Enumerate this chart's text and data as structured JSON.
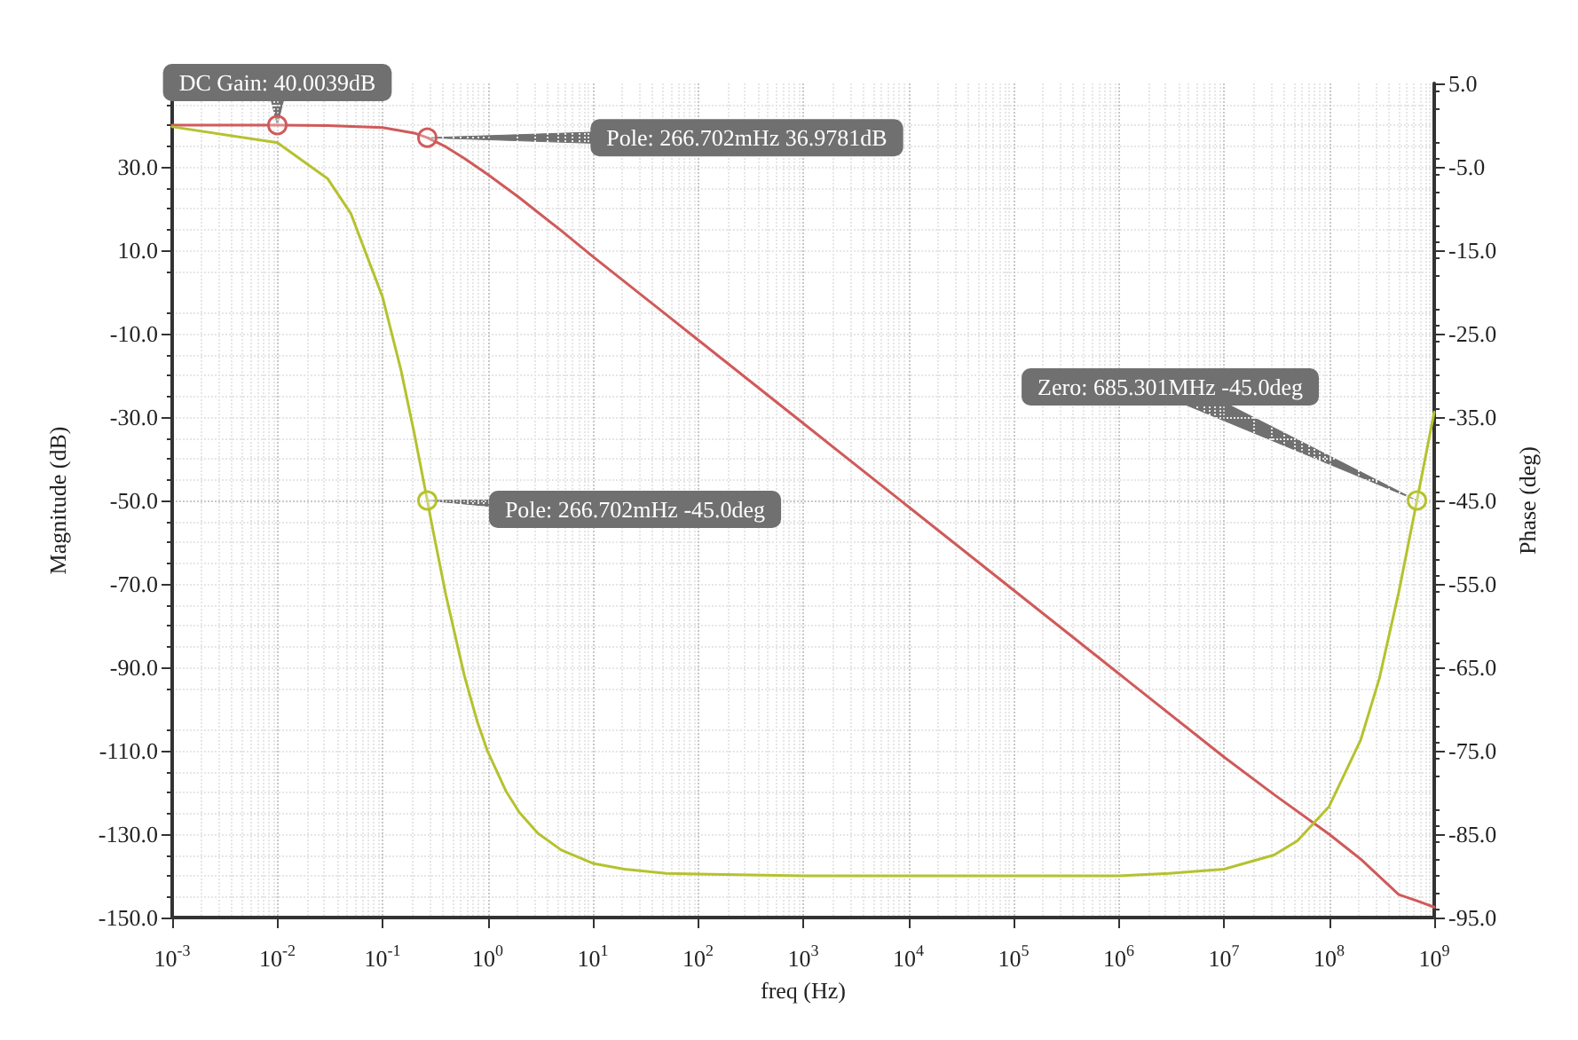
{
  "chart_data": {
    "type": "line",
    "xlabel": "freq (Hz)",
    "ylabel": "Magnitude (dB)",
    "y2label": "Phase (deg)",
    "x": [
      0.001,
      0.01,
      0.03,
      0.1,
      0.2,
      0.266702,
      0.4,
      0.6,
      1,
      2,
      3,
      5,
      10,
      100,
      1000,
      10000,
      100000,
      1000000,
      10000000,
      30000000,
      100000000,
      200000000,
      460000000,
      685301000,
      1000000000
    ],
    "series": [
      {
        "color": "#d05a5a",
        "values": [
          40,
          40,
          39.9,
          39.4,
          38.1,
          37.0,
          34.8,
          32.0,
          28.2,
          22.6,
          19.1,
          14.7,
          8.5,
          -11.5,
          -31.5,
          -51.5,
          -71.5,
          -91.5,
          -111.5,
          -120.5,
          -130,
          -136,
          -144.5,
          -146,
          -147.5
        ]
      },
      {
        "color": "#b5c22e",
        "axis": "y2",
        "x": [
          0.001,
          0.01,
          0.03,
          0.05,
          0.1,
          0.15,
          0.2,
          0.266702,
          0.3,
          0.4,
          0.6,
          0.8,
          1,
          1.5,
          2,
          3,
          5,
          10,
          20,
          50,
          100,
          1000,
          10000,
          100000,
          1000000,
          3000000,
          10000000,
          30000000,
          50000000,
          100000000,
          200000000,
          300000000,
          460000000,
          685301000,
          1000000000
        ],
        "values": [
          -0.2,
          -2.1,
          -6.4,
          -10.6,
          -20.6,
          -29.4,
          -36.9,
          -45,
          -48.4,
          -56.3,
          -66.0,
          -71.6,
          -75.1,
          -79.9,
          -82.4,
          -84.9,
          -86.9,
          -88.5,
          -89.2,
          -89.7,
          -89.8,
          -90,
          -90,
          -90,
          -90,
          -89.7,
          -89.2,
          -87.5,
          -85.8,
          -81.7,
          -73.7,
          -66.4,
          -56,
          -45,
          -34.4
        ]
      }
    ],
    "xlim": [
      0.001,
      1000000000
    ],
    "xticks": [
      {
        "value": 0.001,
        "label": "10$^{-3}$"
      },
      {
        "value": 0.01,
        "label": "10$^{-2}$"
      },
      {
        "value": 0.1,
        "label": "10$^{-1}$"
      },
      {
        "value": 1,
        "label": "10$^{0}$"
      },
      {
        "value": 10,
        "label": "10$^{1}$"
      },
      {
        "value": 100,
        "label": "10$^{2}$"
      },
      {
        "value": 1000,
        "label": "10$^{3}$"
      },
      {
        "value": 10000,
        "label": "10$^{4}$"
      },
      {
        "value": 100000,
        "label": "10$^{5}$"
      },
      {
        "value": 1000000,
        "label": "10$^{6}$"
      },
      {
        "value": 10000000,
        "label": "10$^{7}$"
      },
      {
        "value": 100000000,
        "label": "10$^{8}$"
      },
      {
        "value": 1000000000,
        "label": "10$^{9}$"
      }
    ],
    "ylim": [
      -150,
      50
    ],
    "yticks": [
      {
        "value": 30,
        "label": "30.0"
      },
      {
        "value": 10,
        "label": "10.0"
      },
      {
        "value": -10,
        "label": "-10.0"
      },
      {
        "value": -30,
        "label": "-30.0"
      },
      {
        "value": -50,
        "label": "-50.0"
      },
      {
        "value": -70,
        "label": "-70.0"
      },
      {
        "value": -90,
        "label": "-90.0"
      },
      {
        "value": -110,
        "label": "-110.0"
      },
      {
        "value": -130,
        "label": "-130.0"
      },
      {
        "value": -150,
        "label": "-150.0"
      }
    ],
    "y2lim": [
      -95,
      5
    ],
    "y2ticks": [
      {
        "value": 5,
        "label": "5.0"
      },
      {
        "value": -5,
        "label": "-5.0"
      },
      {
        "value": -15,
        "label": "-15.0"
      },
      {
        "value": -25,
        "label": "-25.0"
      },
      {
        "value": -35,
        "label": "-35.0"
      },
      {
        "value": -45,
        "label": "-45.0"
      },
      {
        "value": -55,
        "label": "-55.0"
      },
      {
        "value": -65,
        "label": "-65.0"
      },
      {
        "value": -75,
        "label": "-75.0"
      },
      {
        "value": -85,
        "label": "-85.0"
      },
      {
        "value": -95,
        "label": "-95.0"
      }
    ],
    "log": "x",
    "grid": true,
    "line_style": "solid",
    "annotations": [
      {
        "text": "DC Gain: 40.0039dB",
        "x": 0.01,
        "y": 40.0039
      },
      {
        "text": "Pole: 266.702mHz 36.9781dB",
        "x": 0.266702,
        "y": 36.9781
      },
      "Pole: 266.702mHz -45.0deg",
      "Zero: 685.301MHz -45.0deg"
    ]
  }
}
